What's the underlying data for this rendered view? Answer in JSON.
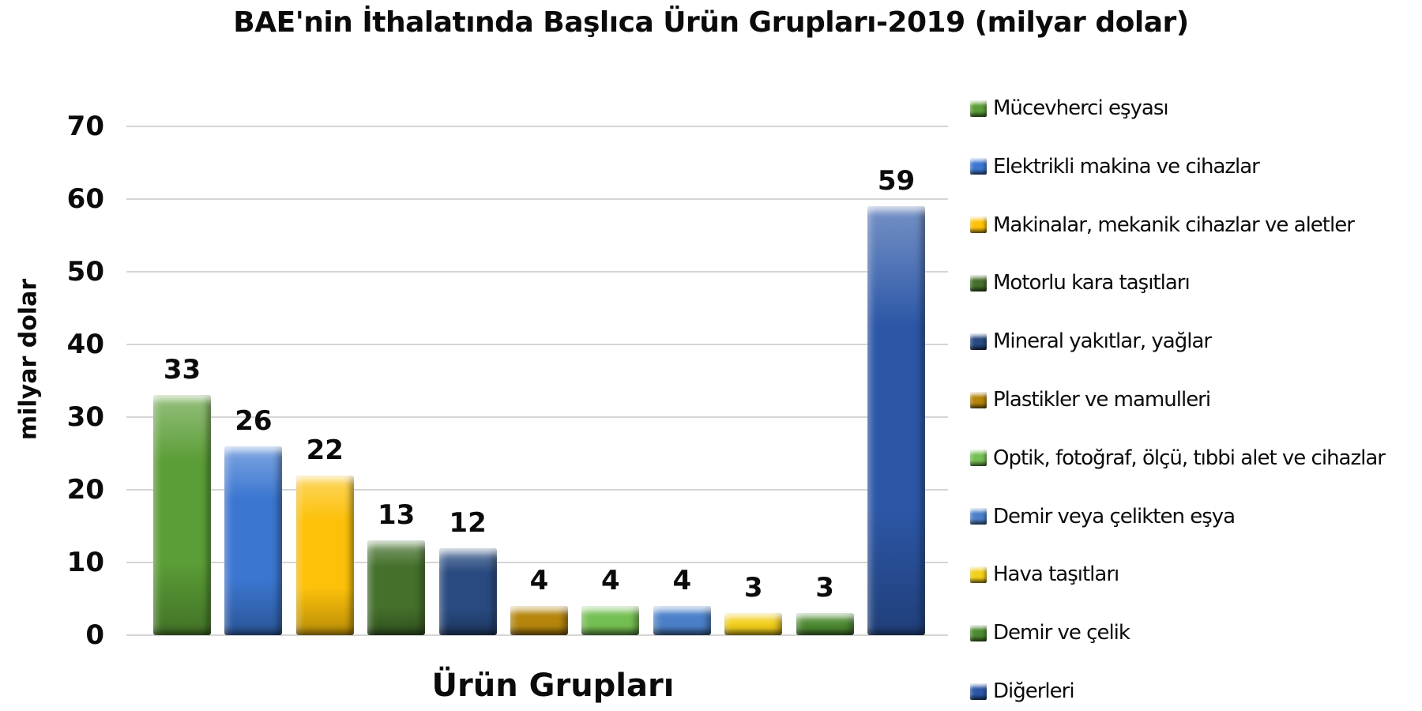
{
  "title": "BAE'nin İthalatında Başlıca Ürün Grupları-2019 (milyar dolar)",
  "chart_data": {
    "type": "bar",
    "title": "BAE'nin İthalatında Başlıca Ürün Grupları-2019 (milyar dolar)",
    "xlabel": "Ürün Grupları",
    "ylabel": "milyar dolar",
    "ylim": [
      0,
      70
    ],
    "yticks": [
      0,
      10,
      20,
      30,
      40,
      50,
      60,
      70
    ],
    "grid": true,
    "legend_position": "right",
    "categories": [
      "Mücevherci eşyası",
      "Elektrikli makina ve cihazlar",
      "Makinalar, mekanik cihazlar ve aletler",
      "Motorlu kara taşıtları",
      "Mineral yakıtlar, yağlar",
      "Plastikler ve mamulleri",
      "Optik, fotoğraf, ölçü, tıbbi alet ve cihazlar",
      "Demir veya çelikten eşya",
      "Hava taşıtları",
      "Demir ve çelik",
      "Diğerleri"
    ],
    "values": [
      33,
      26,
      22,
      13,
      12,
      4,
      4,
      4,
      3,
      3,
      59
    ],
    "colors": [
      "#5B9D36",
      "#3B76D1",
      "#FDC10A",
      "#44702B",
      "#284A80",
      "#B5850C",
      "#74BF52",
      "#4B80C9",
      "#F2CF1A",
      "#4D8A31",
      "#2C57A7"
    ],
    "value_label_color": "#0b0b0b",
    "gridline_color": "#d5d5d5"
  }
}
